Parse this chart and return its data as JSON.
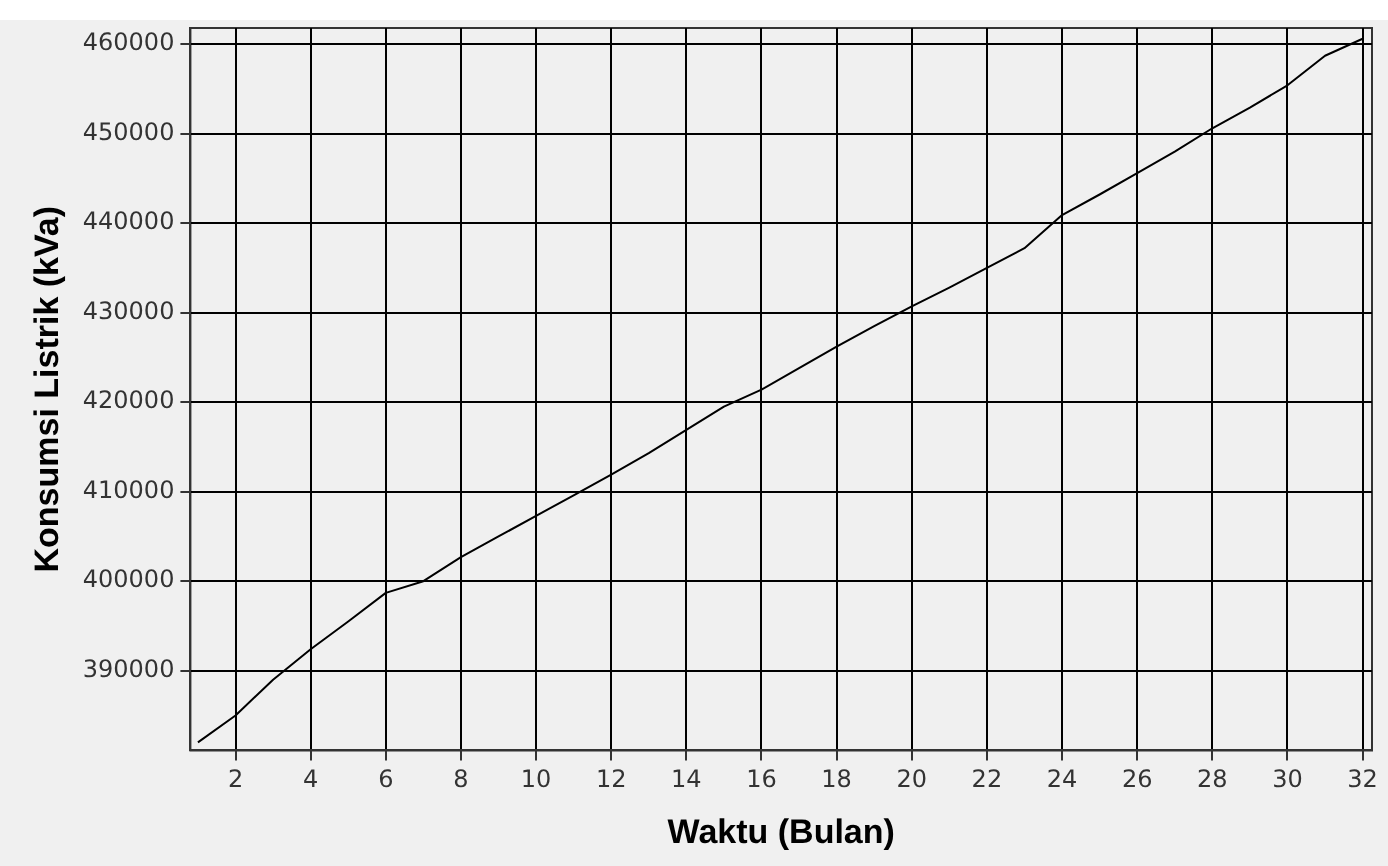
{
  "chart_data": {
    "type": "line",
    "xlabel": "Waktu (Bulan)",
    "ylabel": "Konsumsi Listrik (kVa)",
    "x": [
      1,
      2,
      3,
      4,
      5,
      6,
      7,
      8,
      9,
      10,
      11,
      12,
      13,
      14,
      15,
      16,
      17,
      18,
      19,
      20,
      21,
      22,
      23,
      24,
      25,
      26,
      27,
      28,
      29,
      30,
      31,
      32
    ],
    "series": [
      {
        "color": "#000000",
        "values": [
          382000,
          385000,
          389000,
          392400,
          395500,
          398700,
          400000,
          402700,
          405000,
          407300,
          409600,
          411900,
          414300,
          416900,
          419500,
          421400,
          423800,
          426200,
          428500,
          430700,
          432800,
          435000,
          437200,
          440900,
          443200,
          445600,
          448000,
          450600,
          452900,
          455400,
          458700,
          460600
        ]
      }
    ],
    "xlim": [
      0.8,
      32.25
    ],
    "xticks": [
      2,
      4,
      6,
      8,
      10,
      12,
      14,
      16,
      18,
      20,
      22,
      24,
      26,
      28,
      30,
      32
    ],
    "ylim": [
      381100,
      461800
    ],
    "yticks": [
      390000,
      400000,
      410000,
      420000,
      430000,
      440000,
      450000,
      460000
    ],
    "grid": true,
    "legend": false,
    "marker": "none",
    "line_style": "solid"
  }
}
